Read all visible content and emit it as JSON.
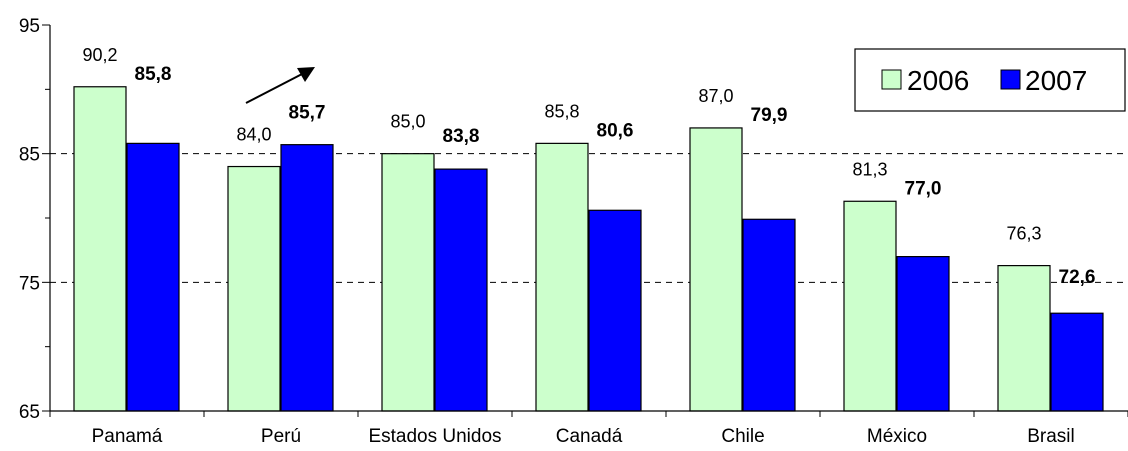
{
  "chart_data": {
    "type": "bar",
    "title": "",
    "xlabel": "",
    "ylabel": "",
    "ylim": [
      65,
      95
    ],
    "yticks": [
      65,
      75,
      85,
      95
    ],
    "grid": "horizontal dashed at 75 and 85",
    "categories": [
      "Panamá",
      "Perú",
      "Estados Unidos",
      "Canadá",
      "Chile",
      "México",
      "Brasil"
    ],
    "series": [
      {
        "name": "2006",
        "color": "#ccffcc",
        "values": [
          90.2,
          84.0,
          85.0,
          85.8,
          87.0,
          81.3,
          76.3
        ],
        "labels": [
          "90,2",
          "84,0",
          "85,0",
          "85,8",
          "87,0",
          "81,3",
          "76,3"
        ]
      },
      {
        "name": "2007",
        "color": "#0000ff",
        "values": [
          85.8,
          85.7,
          83.8,
          80.6,
          79.9,
          77.0,
          72.6
        ],
        "labels": [
          "85,8",
          "85,7",
          "83,8",
          "80,6",
          "79,9",
          "77,0",
          "72,6"
        ]
      }
    ],
    "legend_position": "top-right",
    "annotation": "upward arrow above Perú"
  }
}
